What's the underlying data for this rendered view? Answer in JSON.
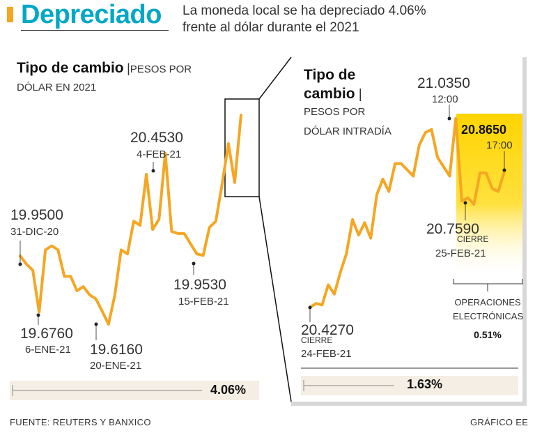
{
  "header": {
    "title": "Depreciado",
    "subtitle_line1": "La moneda local se ha depreciado 4.06%",
    "subtitle_line2": "frente al dólar durante el 2021"
  },
  "footer": {
    "source": "FUENTE: REUTERS Y BANXICO",
    "credit": "GRÁFICO EE"
  },
  "colors": {
    "title": "#00a8c6",
    "line": "#f5a623",
    "highlight": "#ffd400",
    "accent_bar": "#f5a623"
  },
  "left": {
    "title": "Tipo de cambio",
    "sub1": "PESOS POR",
    "sub2": "DÓLAR EN 2021",
    "change": "4.06%",
    "labels": {
      "start_value": "19.9500",
      "start_date": "31-DIC-20",
      "low1_value": "19.6760",
      "low1_date": "6-ENE-21",
      "low2_value": "19.6160",
      "low2_date": "20-ENE-21",
      "peak_value": "20.4530",
      "peak_date": "4-FEB-21",
      "mid_value": "19.9530",
      "mid_date": "15-FEB-21"
    }
  },
  "right": {
    "title_line1": "Tipo de",
    "title_line2": "cambio",
    "sub1": "PESOS POR",
    "sub2": "DÓLAR INTRADÍA",
    "change": "1.63%",
    "labels": {
      "open_value": "20.4270",
      "open_note": "CIERRE",
      "open_date": "24-FEB-21",
      "peak_value": "21.0350",
      "peak_time": "12:00",
      "low_value": "20.7590",
      "low_note": "CIERRE",
      "low_date": "25-FEB-21",
      "last_value": "20.8650",
      "last_time": "17:00",
      "ops_line1": "OPERACIONES",
      "ops_line2": "ELECTRÓNICAS",
      "ops_change": "0.51%"
    }
  },
  "chart_data": [
    {
      "type": "line",
      "title": "Tipo de cambio | PESOS POR DÓLAR EN 2021",
      "ylim": [
        19.4,
        20.7
      ],
      "values": [
        19.95,
        19.91,
        19.88,
        19.676,
        19.98,
        20.0,
        19.98,
        19.85,
        19.85,
        19.78,
        19.8,
        19.76,
        19.74,
        19.68,
        19.616,
        19.76,
        19.98,
        19.96,
        20.12,
        20.1,
        20.35,
        20.08,
        20.13,
        20.453,
        20.07,
        20.06,
        20.06,
        20.01,
        19.96,
        19.953,
        20.09,
        20.12,
        20.3,
        20.5,
        20.31,
        20.64
      ]
    },
    {
      "type": "line",
      "title": "Tipo de cambio | PESOS POR DÓLAR INTRADÍA",
      "ylim": [
        20.3,
        21.1
      ],
      "values": [
        20.427,
        20.44,
        20.435,
        20.5,
        20.47,
        20.54,
        20.6,
        20.71,
        20.66,
        20.7,
        20.65,
        20.79,
        20.84,
        20.8,
        20.89,
        20.89,
        20.87,
        20.85,
        20.95,
        20.99,
        21.0,
        20.91,
        20.88,
        20.85,
        21.035,
        20.77,
        20.78,
        20.759,
        20.86,
        20.86,
        20.81,
        20.8,
        20.865
      ]
    }
  ]
}
